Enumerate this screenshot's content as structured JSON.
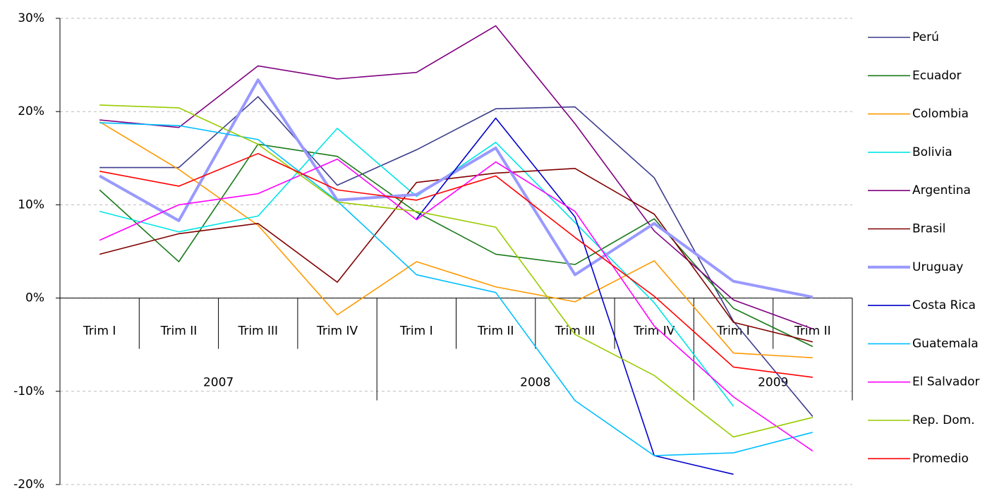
{
  "chart_data": {
    "type": "line",
    "groups": [
      {
        "label": "2007",
        "categories": [
          "Trim I",
          "Trim II",
          "Trim III",
          "Trim IV"
        ]
      },
      {
        "label": "2008",
        "categories": [
          "Trim I",
          "Trim II",
          "Trim III",
          "Trim IV"
        ]
      },
      {
        "label": "2009",
        "categories": [
          "Trim I",
          "Trim II"
        ]
      }
    ],
    "ylim": [
      -20,
      30
    ],
    "yticks": [
      {
        "value": -20,
        "label": "-20%"
      },
      {
        "value": -10,
        "label": "-10%"
      },
      {
        "value": 0,
        "label": "0%"
      },
      {
        "value": 10,
        "label": "10%"
      },
      {
        "value": 20,
        "label": "20%"
      },
      {
        "value": 30,
        "label": "30%"
      }
    ],
    "grid": true,
    "legend": "right",
    "series": [
      {
        "name": "Perú",
        "color": "#3c3c8c",
        "values": [
          14.0,
          14.0,
          21.6,
          12.1,
          15.9,
          20.3,
          20.5,
          12.9,
          -2.5,
          -12.7
        ]
      },
      {
        "name": "Ecuador",
        "color": "#1a7a1a",
        "values": [
          11.6,
          3.9,
          16.5,
          15.2,
          9.2,
          4.7,
          3.6,
          8.5,
          -1.1,
          -5.2
        ]
      },
      {
        "name": "Colombia",
        "color": "#ff9900",
        "values": [
          18.9,
          13.8,
          7.8,
          -1.8,
          3.9,
          1.2,
          -0.4,
          4.0,
          -5.9,
          -6.4
        ]
      },
      {
        "name": "Bolivia",
        "color": "#00e5e5",
        "values": [
          9.3,
          7.1,
          8.8,
          18.2,
          10.9,
          16.7,
          8.1,
          -0.5,
          -11.6,
          null
        ]
      },
      {
        "name": "Argentina",
        "color": "#800080",
        "values": [
          19.1,
          18.3,
          24.9,
          23.5,
          24.2,
          29.2,
          18.7,
          7.2,
          -0.2,
          -3.3
        ]
      },
      {
        "name": "Brasil",
        "color": "#800000",
        "values": [
          4.7,
          6.9,
          8.0,
          1.7,
          12.4,
          13.4,
          13.9,
          9.0,
          -2.6,
          -4.7
        ]
      },
      {
        "name": "Uruguay",
        "color": "#9999ff",
        "width": 4,
        "values": [
          13.1,
          8.3,
          23.4,
          10.5,
          11.1,
          16.1,
          2.5,
          8.0,
          1.8,
          0.1
        ]
      },
      {
        "name": "Costa Rica",
        "color": "#0000cc",
        "values": [
          null,
          null,
          null,
          null,
          8.5,
          19.3,
          8.7,
          -16.9,
          -18.9,
          null
        ]
      },
      {
        "name": "Guatemala",
        "color": "#00bfff",
        "values": [
          18.8,
          18.5,
          17.0,
          10.4,
          2.5,
          0.6,
          -11.0,
          -16.9,
          -16.6,
          -14.4
        ]
      },
      {
        "name": "El Salvador",
        "color": "#ff00ff",
        "values": [
          6.2,
          10.0,
          11.2,
          14.9,
          8.4,
          14.6,
          9.3,
          -3.0,
          -10.6,
          -16.4
        ]
      },
      {
        "name": "Rep. Dom.",
        "color": "#99cc00",
        "values": [
          20.7,
          20.4,
          16.5,
          10.3,
          9.3,
          7.6,
          -3.9,
          -8.3,
          -14.9,
          -12.8
        ]
      },
      {
        "name": "Promedio",
        "color": "#ff0000",
        "values": [
          13.6,
          12.0,
          15.5,
          11.6,
          10.5,
          13.1,
          6.5,
          0.2,
          -7.4,
          -8.5
        ]
      }
    ]
  }
}
